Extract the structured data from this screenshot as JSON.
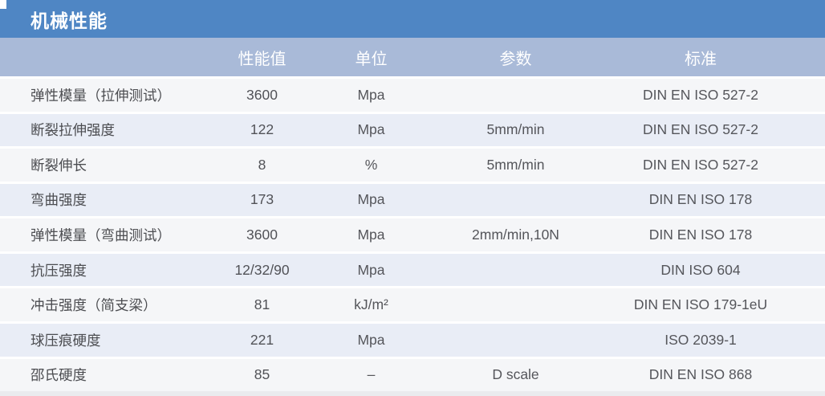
{
  "title": "机械性能",
  "colors": {
    "title_bar": "#4f86c4",
    "column_header_bar": "#a9bad8",
    "row_stripe_gray": "#f5f6f8",
    "row_stripe_blue": "#e9edf6",
    "header_text": "#ffffff",
    "body_text": "#515257",
    "bottom_strip": "#eaebee"
  },
  "table": {
    "columns": [
      {
        "label": ""
      },
      {
        "label": "性能值"
      },
      {
        "label": "单位"
      },
      {
        "label": "参数"
      },
      {
        "label": "标准"
      }
    ],
    "rows": [
      {
        "property": "弹性模量（拉伸测试）",
        "value": "3600",
        "unit": "Mpa",
        "parameter": "",
        "standard": "DIN EN ISO 527-2"
      },
      {
        "property": "断裂拉伸强度",
        "value": "122",
        "unit": "Mpa",
        "parameter": "5mm/min",
        "standard": "DIN EN ISO 527-2"
      },
      {
        "property": "断裂伸长",
        "value": "8",
        "unit": "%",
        "parameter": "5mm/min",
        "standard": "DIN EN ISO 527-2"
      },
      {
        "property": "弯曲强度",
        "value": "173",
        "unit": "Mpa",
        "parameter": "",
        "standard": "DIN EN ISO 178"
      },
      {
        "property": "弹性模量（弯曲测试）",
        "value": "3600",
        "unit": "Mpa",
        "parameter": "2mm/min,10N",
        "standard": "DIN EN ISO 178"
      },
      {
        "property": "抗压强度",
        "value": "12/32/90",
        "unit": "Mpa",
        "parameter": "",
        "standard": "DIN ISO 604"
      },
      {
        "property": "冲击强度（简支梁）",
        "value": "81",
        "unit": "kJ/m²",
        "parameter": "",
        "standard": "DIN EN ISO 179-1eU"
      },
      {
        "property": "球压痕硬度",
        "value": "221",
        "unit": "Mpa",
        "parameter": "",
        "standard": "ISO 2039-1"
      },
      {
        "property": "邵氏硬度",
        "value": "85",
        "unit": "–",
        "parameter": "D scale",
        "standard": "DIN EN ISO 868"
      }
    ]
  }
}
